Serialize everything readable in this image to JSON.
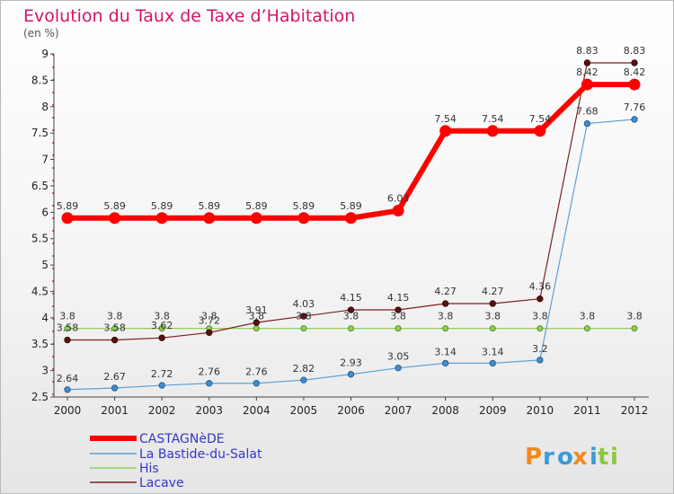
{
  "chart_data": {
    "type": "line",
    "title": "Evolution du Taux de Taxe d’Habitation",
    "subtitle": "(en %)",
    "x": [
      "2000",
      "2001",
      "2002",
      "2003",
      "2004",
      "2005",
      "2006",
      "2007",
      "2008",
      "2009",
      "2010",
      "2011",
      "2012"
    ],
    "ylim": [
      2.5,
      9
    ],
    "yticks": [
      "2.5",
      "3",
      "3.5",
      "4",
      "4.5",
      "5",
      "5.5",
      "6",
      "6.5",
      "7",
      "7.5",
      "8",
      "8.5",
      "9"
    ],
    "grid": false,
    "legend_position": "bottom-left",
    "series": [
      {
        "name": "CASTAGNèDE",
        "color": "#ff0000",
        "values": [
          5.89,
          5.89,
          5.89,
          5.89,
          5.89,
          5.89,
          5.89,
          6.03,
          7.54,
          7.54,
          7.54,
          8.42,
          8.42
        ],
        "labels": [
          "5.89",
          "5.89",
          "5.89",
          "5.89",
          "5.89",
          "5.89",
          "5.89",
          "6.03",
          "7.54",
          "7.54",
          "7.54",
          "8.42",
          "8.42"
        ]
      },
      {
        "name": "La Bastide-du-Salat",
        "color": "#5f9fd2",
        "values": [
          2.64,
          2.67,
          2.72,
          2.76,
          2.76,
          2.82,
          2.93,
          3.05,
          3.14,
          3.14,
          3.2,
          7.68,
          7.76
        ],
        "labels": [
          "2.64",
          "2.67",
          "2.72",
          "2.76",
          "2.76",
          "2.82",
          "2.93",
          "3.05",
          "3.14",
          "3.14",
          "3.2",
          "7.68",
          "7.76"
        ]
      },
      {
        "name": "His",
        "color": "#8fd05a",
        "values": [
          3.8,
          3.8,
          3.8,
          3.8,
          3.8,
          3.8,
          3.8,
          3.8,
          3.8,
          3.8,
          3.8,
          3.8,
          3.8
        ],
        "labels": [
          "3.8",
          "3.8",
          "3.8",
          "3.8",
          "3.8",
          "3.8",
          "3.8",
          "3.8",
          "3.8",
          "3.8",
          "3.8",
          "3.8",
          "3.8"
        ]
      },
      {
        "name": "Lacave",
        "color": "#7a1f1f",
        "values": [
          3.58,
          3.58,
          3.62,
          3.72,
          3.91,
          4.03,
          4.15,
          4.15,
          4.27,
          4.27,
          4.36,
          8.83,
          8.83
        ],
        "labels": [
          "3.58",
          "3.58",
          "3.62",
          "3.72",
          "3.91",
          "4.03",
          "4.15",
          "4.15",
          "4.27",
          "4.27",
          "4.36",
          "8.83",
          "8.83"
        ]
      }
    ]
  },
  "branding": {
    "logo_text": "Proxiti"
  }
}
